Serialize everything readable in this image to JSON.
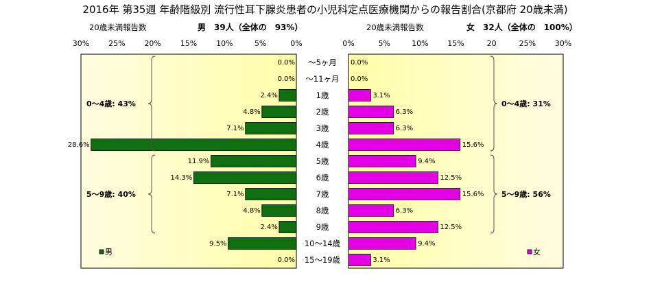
{
  "title": "2016年 第35週 年齢階級別 流行性耳下腺炎患者の小児科定点医療機関からの報告割合(京都府 20歳未満)",
  "left_panel": {
    "subtitle_label": "20歳未満報告数",
    "subtitle_value": "男　39人（全体の　93%）"
  },
  "right_panel": {
    "subtitle_label": "20歳未満報告数",
    "subtitle_value": "女　32人（全体の　100%）"
  },
  "colors": {
    "male": "#0f6e0f",
    "female": "#e400e4",
    "bar_edge": "#000000",
    "bg_edge": "#fffce0",
    "bg_center": "#ffffa8"
  },
  "chart_data": {
    "type": "bar",
    "orientation": "horizontal",
    "layout": "population-pyramid",
    "title": "2016年 第35週 年齢階級別 流行性耳下腺炎患者の小児科定点医療機関からの報告割合(京都府 20歳未満)",
    "categories": [
      "～5ヶ月",
      "～11ヶ月",
      "1歳",
      "2歳",
      "3歳",
      "4歳",
      "5歳",
      "6歳",
      "7歳",
      "8歳",
      "9歳",
      "10～14歳",
      "15～19歳"
    ],
    "series": [
      {
        "name": "男",
        "values": [
          0.0,
          0.0,
          2.4,
          4.8,
          7.1,
          28.6,
          11.9,
          14.3,
          7.1,
          4.8,
          2.4,
          9.5,
          0.0
        ],
        "labels": [
          "0.0%",
          "0.0%",
          "2.4%",
          "4.8%",
          "7.1%",
          "28.6%",
          "11.9%",
          "14.3%",
          "7.1%",
          "4.8%",
          "2.4%",
          "9.5%",
          "0.0%"
        ]
      },
      {
        "name": "女",
        "values": [
          0.0,
          0.0,
          3.1,
          6.3,
          6.3,
          15.6,
          9.4,
          12.5,
          15.6,
          6.3,
          12.5,
          9.4,
          3.1
        ],
        "labels": [
          "0.0%",
          "0.0%",
          "3.1%",
          "6.3%",
          "6.3%",
          "15.6%",
          "9.4%",
          "12.5%",
          "15.6%",
          "6.3%",
          "12.5%",
          "9.4%",
          "3.1%"
        ]
      }
    ],
    "xlim": [
      0,
      30
    ],
    "left_ticks": [
      "30%",
      "25%",
      "20%",
      "15%",
      "10%",
      "5%",
      "0%"
    ],
    "right_ticks": [
      "0%",
      "5%",
      "10%",
      "15%",
      "20",
      "25%",
      "30%"
    ],
    "grid": false,
    "legend": {
      "left": "男",
      "right": "女",
      "placement": "bottom-corners"
    },
    "groups": {
      "left": [
        {
          "label": "0～4歳: 43%",
          "from": 0,
          "to": 5
        },
        {
          "label": "5～9歳: 40%",
          "from": 6,
          "to": 10
        }
      ],
      "right": [
        {
          "label": "0～4歳: 31%",
          "from": 0,
          "to": 5
        },
        {
          "label": "5～9歳: 56%",
          "from": 6,
          "to": 10
        }
      ]
    }
  }
}
